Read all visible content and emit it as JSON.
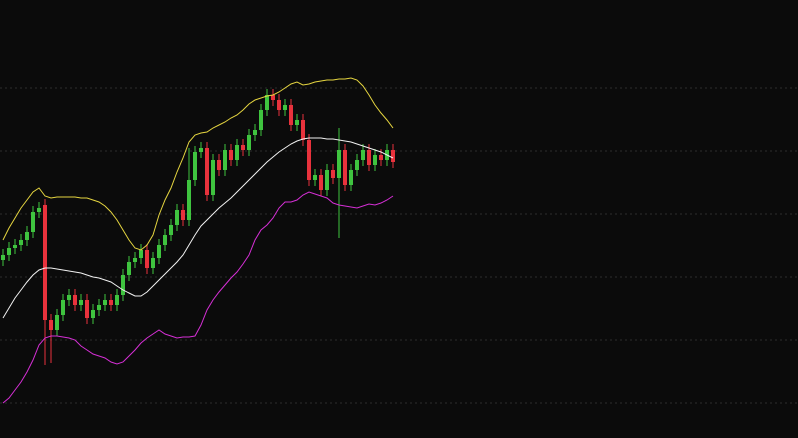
{
  "chart_data": {
    "type": "candlestick",
    "background": "#0b0b0b",
    "up_color": "#3fc43f",
    "down_color": "#e8323c",
    "grid": true,
    "grid_color": "#2e2e2e",
    "ylim": [
      0,
      438
    ],
    "yticks": [
      35,
      98,
      161,
      224,
      287,
      350
    ],
    "open": [
      178,
      183,
      190,
      193,
      198,
      206,
      226,
      233,
      118,
      108,
      123,
      138,
      143,
      133,
      138,
      120,
      128,
      133,
      138,
      133,
      143,
      163,
      176,
      180,
      188,
      170,
      180,
      193,
      203,
      213,
      228,
      218,
      258,
      286,
      290,
      243,
      278,
      268,
      288,
      278,
      293,
      288,
      303,
      308,
      328,
      343,
      338,
      328,
      333,
      313,
      318,
      298,
      258,
      263,
      248,
      268,
      260,
      288,
      253,
      268,
      278,
      288,
      273,
      283,
      278,
      288
    ],
    "high": [
      189,
      196,
      199,
      204,
      212,
      232,
      236,
      239,
      124,
      129,
      144,
      149,
      149,
      144,
      144,
      134,
      139,
      144,
      144,
      149,
      169,
      182,
      186,
      194,
      194,
      186,
      199,
      209,
      219,
      234,
      234,
      290,
      292,
      296,
      296,
      284,
      284,
      294,
      294,
      299,
      299,
      309,
      314,
      334,
      349,
      349,
      344,
      339,
      339,
      324,
      324,
      304,
      269,
      269,
      274,
      274,
      310,
      294,
      274,
      284,
      294,
      294,
      289,
      289,
      294,
      294
    ],
    "low": [
      172,
      177,
      184,
      187,
      192,
      200,
      220,
      73,
      75,
      102,
      117,
      132,
      127,
      127,
      114,
      114,
      122,
      127,
      127,
      127,
      137,
      157,
      170,
      174,
      164,
      164,
      174,
      187,
      197,
      207,
      212,
      212,
      252,
      280,
      237,
      237,
      262,
      262,
      272,
      272,
      282,
      282,
      297,
      302,
      322,
      332,
      322,
      322,
      307,
      307,
      292,
      252,
      252,
      242,
      242,
      254,
      200,
      247,
      247,
      262,
      272,
      267,
      267,
      272,
      272,
      270
    ],
    "close": [
      183,
      190,
      193,
      198,
      206,
      226,
      230,
      118,
      108,
      123,
      138,
      143,
      133,
      138,
      120,
      128,
      133,
      138,
      133,
      143,
      163,
      176,
      180,
      188,
      170,
      180,
      193,
      203,
      213,
      228,
      218,
      258,
      286,
      290,
      243,
      278,
      268,
      288,
      278,
      293,
      288,
      303,
      308,
      328,
      343,
      338,
      328,
      333,
      313,
      318,
      298,
      258,
      263,
      248,
      268,
      260,
      288,
      253,
      268,
      278,
      288,
      273,
      283,
      278,
      288,
      276
    ],
    "series": [
      {
        "color": "#e6d640",
        "values": [
          198,
          210,
          220,
          230,
          238,
          246,
          250,
          242,
          240,
          241,
          241,
          241,
          241,
          240,
          240,
          238,
          236,
          232,
          226,
          218,
          208,
          198,
          190,
          188,
          193,
          203,
          223,
          238,
          250,
          266,
          280,
          296,
          303,
          305,
          306,
          310,
          313,
          316,
          320,
          323,
          328,
          334,
          338,
          340,
          342,
          343,
          346,
          350,
          354,
          356,
          353,
          354,
          356,
          357,
          358,
          358,
          359,
          359,
          360,
          358,
          352,
          343,
          333,
          325,
          318,
          310
        ]
      },
      {
        "color": "#f2f2f2",
        "values": [
          120,
          130,
          140,
          148,
          156,
          163,
          168,
          170,
          170,
          169,
          168,
          167,
          166,
          165,
          163,
          161,
          160,
          158,
          156,
          152,
          148,
          145,
          142,
          142,
          146,
          152,
          158,
          164,
          170,
          176,
          183,
          193,
          203,
          212,
          218,
          224,
          230,
          235,
          240,
          246,
          252,
          258,
          264,
          270,
          276,
          281,
          286,
          290,
          294,
          297,
          299,
          300,
          300,
          300,
          299,
          299,
          298,
          297,
          296,
          294,
          292,
          290,
          288,
          286,
          283,
          280
        ]
      },
      {
        "color": "#d62fd6",
        "values": [
          35,
          40,
          48,
          56,
          66,
          78,
          93,
          100,
          102,
          102,
          101,
          100,
          98,
          92,
          88,
          84,
          82,
          80,
          76,
          74,
          76,
          82,
          88,
          95,
          100,
          104,
          108,
          104,
          102,
          100,
          101,
          101,
          102,
          113,
          128,
          138,
          146,
          153,
          160,
          166,
          174,
          183,
          198,
          208,
          213,
          220,
          230,
          236,
          236,
          238,
          243,
          246,
          244,
          242,
          240,
          235,
          233,
          232,
          231,
          230,
          232,
          234,
          233,
          235,
          238,
          242
        ]
      }
    ]
  }
}
